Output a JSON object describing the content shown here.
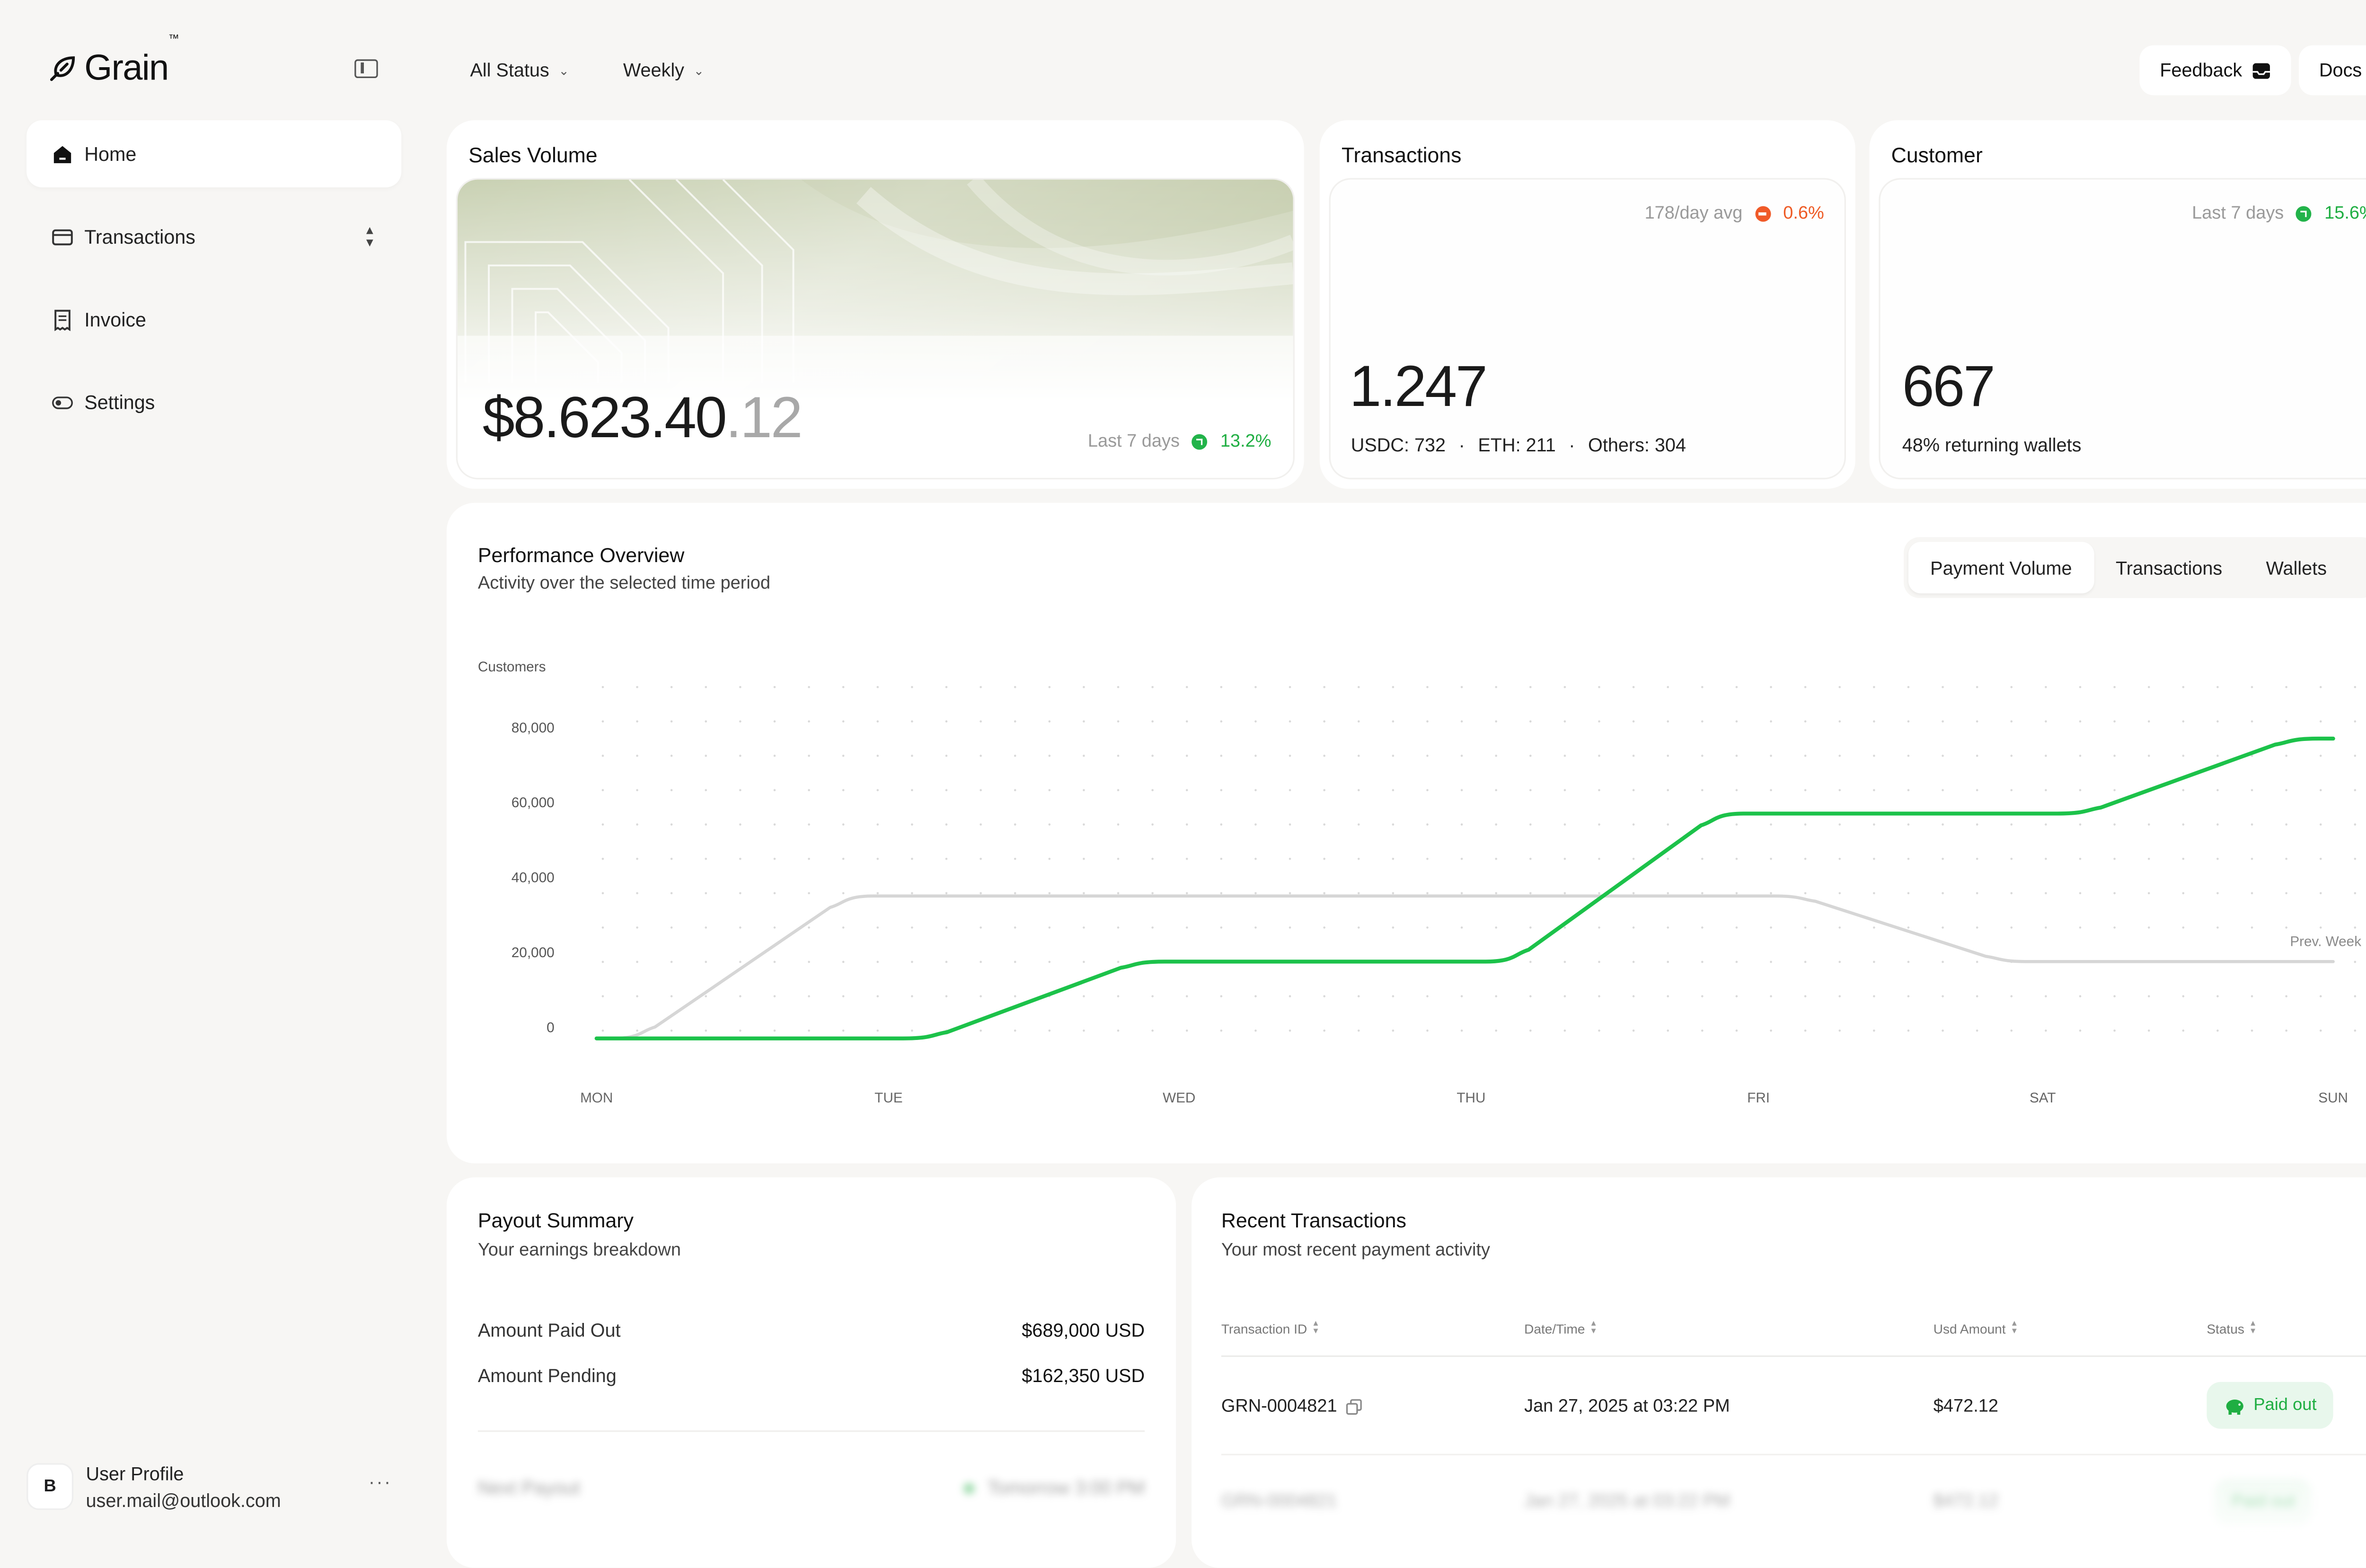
{
  "app": {
    "logo": "Grain",
    "logo_tm": "™"
  },
  "sidebar": {
    "items": [
      {
        "label": "Home",
        "icon": "home-icon",
        "active": true
      },
      {
        "label": "Transactions",
        "icon": "card-icon",
        "active": false
      },
      {
        "label": "Invoice",
        "icon": "receipt-icon",
        "active": false
      },
      {
        "label": "Settings",
        "icon": "toggle-icon",
        "active": false
      }
    ],
    "user": {
      "initial": "B",
      "name": "User Profile",
      "email": "user.mail@outlook.com",
      "more": "···"
    }
  },
  "topbar": {
    "status_filter": "All Status",
    "period_filter": "Weekly",
    "feedback_label": "Feedback",
    "docs_label": "Docs"
  },
  "sales": {
    "title": "Sales Volume",
    "amount_main": "$8.623.40",
    "amount_cents": ".12",
    "period": "Last 7 days",
    "change": "13.2%"
  },
  "transactions_card": {
    "title": "Transactions",
    "avg": "178/day avg",
    "change": "0.6%",
    "value": "1.247",
    "breakdown": [
      "USDC: 732",
      "ETH: 211",
      "Others: 304"
    ]
  },
  "customer_card": {
    "title": "Customer",
    "period": "Last 7 days",
    "change": "15.6%",
    "value": "667",
    "sub": "48% returning wallets"
  },
  "performance": {
    "title": "Performance Overview",
    "subtitle": "Activity over the selected time period",
    "tabs": [
      "Payment Volume",
      "Transactions",
      "Wallets"
    ],
    "active_tab": 0
  },
  "chart_data": {
    "type": "line",
    "ylabel": "Customers",
    "categories": [
      "MON",
      "TUE",
      "WED",
      "THU",
      "FRI",
      "SAT",
      "SUN"
    ],
    "yticks": [
      "0",
      "20,000",
      "40,000",
      "60,000",
      "80,000"
    ],
    "ylim": [
      0,
      80000
    ],
    "series": [
      {
        "name": "",
        "color": "#1cc24a",
        "values": [
          0,
          0,
          20500,
          20500,
          60000,
          60000,
          80000
        ]
      },
      {
        "name": "Prev. Week",
        "color": "#d6d6d6",
        "values": [
          0,
          38000,
          38000,
          38000,
          38000,
          20500,
          20500
        ]
      }
    ],
    "grid": "dotted"
  },
  "payout": {
    "title": "Payout Summary",
    "subtitle": "Your earnings breakdown",
    "rows": [
      {
        "label": "Amount Paid Out",
        "value": "$689,000 USD"
      },
      {
        "label": "Amount Pending",
        "value": "$162,350 USD"
      },
      {
        "label": "Next Payout",
        "value": "Tomorrow 3:00 PM"
      }
    ]
  },
  "recent": {
    "title": "Recent Transactions",
    "subtitle": "Your most recent payment activity",
    "columns": [
      "Transaction ID",
      "Date/Time",
      "Usd Amount",
      "Status"
    ],
    "rows": [
      {
        "id": "GRN-0004821",
        "date": "Jan 27, 2025 at 03:22 PM",
        "amount": "$472.12",
        "status": "Paid out"
      },
      {
        "id": "GRN-0004821",
        "date": "Jan 27, 2025 at 03:22 PM",
        "amount": "$472.12",
        "status": "Paid out"
      }
    ]
  }
}
